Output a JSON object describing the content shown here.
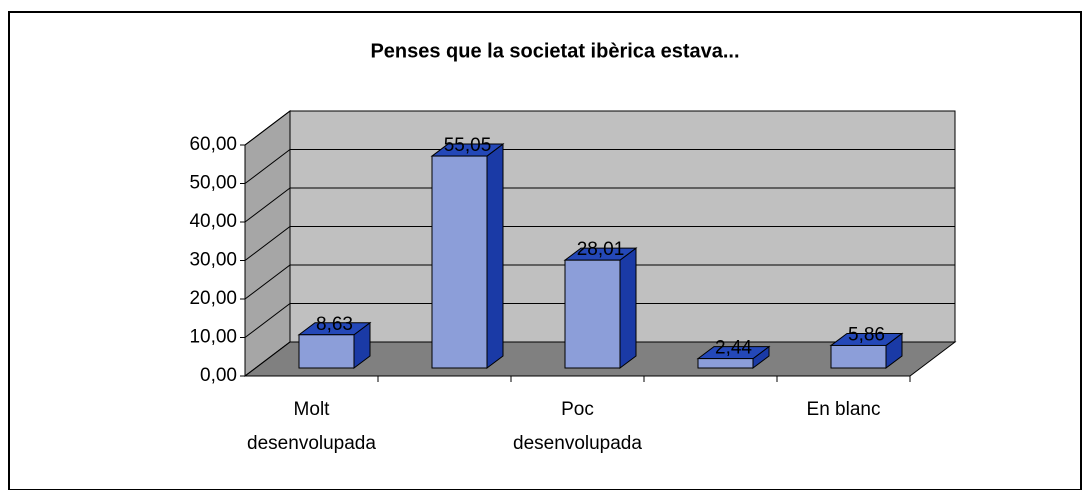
{
  "chart_data": {
    "type": "bar3d",
    "title": "Penses que la societat ibèrica estava...",
    "categories": [
      "Molt\ndesenvolupada",
      null,
      "Poc\ndesenvolupada",
      null,
      "En blanc"
    ],
    "values": [
      8.63,
      55.05,
      28.01,
      2.44,
      5.86
    ],
    "value_labels": [
      "8,63",
      "55,05",
      "28,01",
      "2,44",
      "5,86"
    ],
    "color": "#8c9ed9",
    "ylim": [
      0,
      60
    ],
    "yticks": [
      {
        "value": 0,
        "label": "0,00"
      },
      {
        "value": 10,
        "label": "10,00"
      },
      {
        "value": 20,
        "label": "20,00"
      },
      {
        "value": 30,
        "label": "30,00"
      },
      {
        "value": 40,
        "label": "40,00"
      },
      {
        "value": 50,
        "label": "50,00"
      },
      {
        "value": 60,
        "label": "60,00"
      }
    ],
    "grid": true
  }
}
